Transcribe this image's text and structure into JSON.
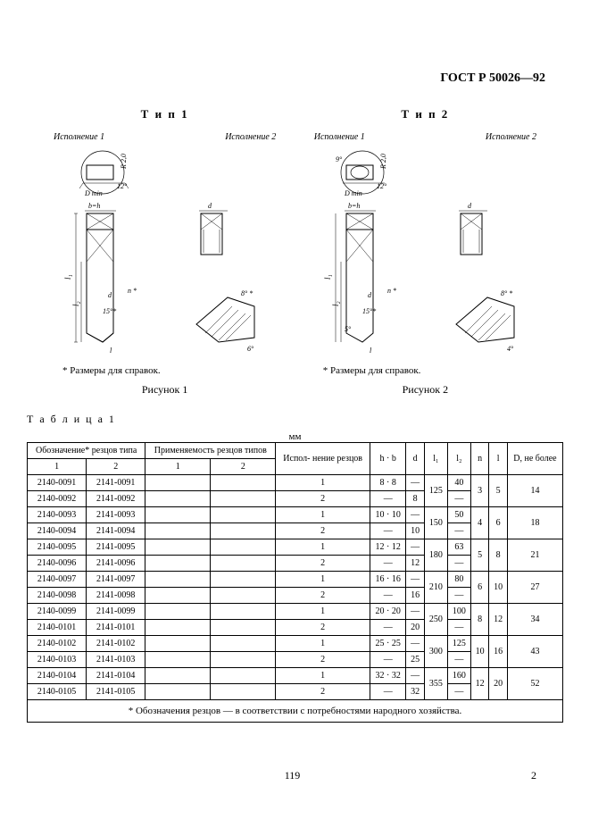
{
  "document_number": "ГОСТ Р 50026—92",
  "type1": {
    "title": "Т и п  1",
    "exec1": "Исполнение 1",
    "exec2": "Исполнение 2",
    "note": "* Размеры для справок.",
    "caption": "Рисунок 1"
  },
  "type2": {
    "title": "Т и п  2",
    "exec1": "Исполнение 1",
    "exec2": "Исполнение 2",
    "note": "* Размеры для справок.",
    "caption": "Рисунок 2"
  },
  "table_label": "Т а б л и ц а 1",
  "unit_label": "мм",
  "table": {
    "headers": {
      "designation": "Обозначение* резцов типа",
      "applicability": "Применяемость резцов типов",
      "execution": "Испол-\nнение резцов",
      "hb": "h · b",
      "d": "d",
      "l1": "l₁",
      "l2": "l₂",
      "n": "n",
      "l": "l",
      "D": "D, не более",
      "sub1": "1",
      "sub2": "2"
    },
    "rows": [
      {
        "d1": "2140-0091",
        "d2": "2141-0091",
        "a1": "",
        "a2": "",
        "ex": "1",
        "hb": "8 · 8",
        "d": "—",
        "l1": "125",
        "l2": "40",
        "n": "3",
        "l": "5",
        "D": "14"
      },
      {
        "d1": "2140-0092",
        "d2": "2141-0092",
        "a1": "",
        "a2": "",
        "ex": "2",
        "hb": "—",
        "d": "8",
        "l1": "",
        "l2": "—",
        "n": "",
        "l": "",
        "D": ""
      },
      {
        "d1": "2140-0093",
        "d2": "2141-0093",
        "a1": "",
        "a2": "",
        "ex": "1",
        "hb": "10 · 10",
        "d": "—",
        "l1": "150",
        "l2": "50",
        "n": "4",
        "l": "6",
        "D": "18"
      },
      {
        "d1": "2140-0094",
        "d2": "2141-0094",
        "a1": "",
        "a2": "",
        "ex": "2",
        "hb": "—",
        "d": "10",
        "l1": "",
        "l2": "—",
        "n": "",
        "l": "",
        "D": ""
      },
      {
        "d1": "2140-0095",
        "d2": "2141-0095",
        "a1": "",
        "a2": "",
        "ex": "1",
        "hb": "12 · 12",
        "d": "—",
        "l1": "180",
        "l2": "63",
        "n": "5",
        "l": "8",
        "D": "21"
      },
      {
        "d1": "2140-0096",
        "d2": "2141-0096",
        "a1": "",
        "a2": "",
        "ex": "2",
        "hb": "—",
        "d": "12",
        "l1": "",
        "l2": "—",
        "n": "",
        "l": "",
        "D": ""
      },
      {
        "d1": "2140-0097",
        "d2": "2141-0097",
        "a1": "",
        "a2": "",
        "ex": "1",
        "hb": "16 · 16",
        "d": "—",
        "l1": "210",
        "l2": "80",
        "n": "6",
        "l": "10",
        "D": "27"
      },
      {
        "d1": "2140-0098",
        "d2": "2141-0098",
        "a1": "",
        "a2": "",
        "ex": "2",
        "hb": "—",
        "d": "16",
        "l1": "",
        "l2": "—",
        "n": "",
        "l": "",
        "D": ""
      },
      {
        "d1": "2140-0099",
        "d2": "2141-0099",
        "a1": "",
        "a2": "",
        "ex": "1",
        "hb": "20 · 20",
        "d": "—",
        "l1": "250",
        "l2": "100",
        "n": "8",
        "l": "12",
        "D": "34"
      },
      {
        "d1": "2140-0101",
        "d2": "2141-0101",
        "a1": "",
        "a2": "",
        "ex": "2",
        "hb": "—",
        "d": "20",
        "l1": "",
        "l2": "—",
        "n": "",
        "l": "",
        "D": ""
      },
      {
        "d1": "2140-0102",
        "d2": "2141-0102",
        "a1": "",
        "a2": "",
        "ex": "1",
        "hb": "25 · 25",
        "d": "—",
        "l1": "300",
        "l2": "125",
        "n": "10",
        "l": "16",
        "D": "43"
      },
      {
        "d1": "2140-0103",
        "d2": "2141-0103",
        "a1": "",
        "a2": "",
        "ex": "2",
        "hb": "—",
        "d": "25",
        "l1": "",
        "l2": "—",
        "n": "",
        "l": "",
        "D": ""
      },
      {
        "d1": "2140-0104",
        "d2": "2141-0104",
        "a1": "",
        "a2": "",
        "ex": "1",
        "hb": "32 · 32",
        "d": "—",
        "l1": "355",
        "l2": "160",
        "n": "12",
        "l": "20",
        "D": "52"
      },
      {
        "d1": "2140-0105",
        "d2": "2141-0105",
        "a1": "",
        "a2": "",
        "ex": "2",
        "hb": "—",
        "d": "32",
        "l1": "",
        "l2": "—",
        "n": "",
        "l": "",
        "D": ""
      }
    ],
    "footnote": "* Обозначения резцов — в соответствии с потребностями народного хозяйства."
  },
  "page_center": "119",
  "page_right": "2",
  "figure": {
    "labels": {
      "dmin": "D min",
      "angle12": "12°",
      "r20": "R 2,0",
      "bh": "b=h",
      "d": "d",
      "l1": "l₁",
      "l2": "l₂",
      "l": "l",
      "n": "n *",
      "a8": "8° *",
      "a15": "15°*",
      "a5": "5°",
      "a6": "6°",
      "a4": "4°"
    },
    "stroke": "#000000",
    "hatch": "#666666"
  }
}
